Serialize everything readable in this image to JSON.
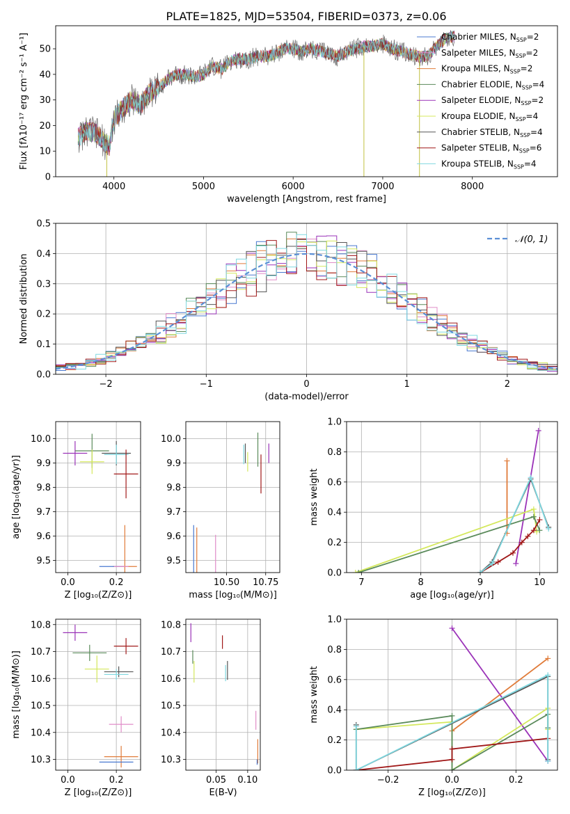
{
  "figure": {
    "title": "PLATE=1825, MJD=53504, FIBERID=0373, z=0.06"
  },
  "colors": {
    "chabrier_miles": "#4878d0",
    "salpeter_miles": "#e08cc8",
    "kroupa_miles": "#e07b39",
    "chabrier_elodie": "#5a8a5a",
    "salpeter_elodie": "#9a32b8",
    "kroupa_elodie": "#d4e85c",
    "chabrier_stelib": "#555555",
    "salpeter_stelib": "#a01818",
    "kroupa_stelib": "#7fd8e0",
    "gaussian": "#5b8fd6",
    "grid": "#b0b0b0"
  },
  "chart_data": [
    {
      "id": "spectrum",
      "type": "line",
      "title": "PLATE=1825, MJD=53504, FIBERID=0373, z=0.06",
      "xlabel": "wavelength [Angstrom, rest frame]",
      "ylabel": "Flux [fλ10⁻¹⁷ erg cm⁻² s⁻¹ A⁻¹]",
      "xlim": [
        3350,
        8950
      ],
      "ylim": [
        0,
        59
      ],
      "xticks": [
        4000,
        5000,
        6000,
        7000,
        8000
      ],
      "yticks": [
        0,
        10,
        20,
        30,
        40,
        50
      ],
      "grid": false,
      "legend_position": "right",
      "legend": [
        "Chabrier MILES, N_SSP=2",
        "Salpeter MILES, N_SSP=2",
        "Kroupa MILES, N_SSP=2",
        "Chabrier ELODIE, N_SSP=4",
        "Salpeter ELODIE, N_SSP=2",
        "Kroupa ELODIE, N_SSP=4",
        "Chabrier STELIB, N_SSP=4",
        "Salpeter STELIB, N_SSP=6",
        "Kroupa STELIB, N_SSP=4"
      ],
      "continuum": {
        "x": [
          3600,
          3700,
          3800,
          3900,
          3950,
          4000,
          4100,
          4200,
          4300,
          4400,
          4500,
          4600,
          4700,
          4800,
          4900,
          5000,
          5100,
          5200,
          5300,
          5400,
          5500,
          5600,
          5700,
          5800,
          5900,
          6000,
          6100,
          6200,
          6300,
          6400,
          6500,
          6600,
          6700,
          6800,
          6900,
          7000,
          7100,
          7200,
          7300,
          7400,
          7500,
          7600,
          7700,
          7800
        ],
        "y": [
          15,
          18,
          17,
          13,
          12,
          22,
          27,
          30,
          28,
          33,
          35,
          38,
          40,
          40,
          39,
          40,
          43,
          42,
          45,
          46,
          46,
          47,
          47,
          48,
          50,
          50,
          49,
          50,
          49,
          48,
          47,
          49,
          50,
          51,
          51,
          52,
          50,
          49,
          48,
          47,
          47,
          51,
          54,
          55
        ]
      },
      "spikes": [
        {
          "x": 3920,
          "y0": 0,
          "y1": 10
        },
        {
          "x": 6790,
          "y0": 0,
          "y1": 51
        },
        {
          "x": 7410,
          "y0": 0,
          "y1": 47
        }
      ]
    },
    {
      "id": "residuals",
      "type": "line",
      "xlabel": "(data-model)/error",
      "ylabel": "Normed distribution",
      "xlim": [
        -2.5,
        2.5
      ],
      "ylim": [
        0,
        0.5
      ],
      "xticks": [
        -2,
        -1,
        0,
        1,
        2
      ],
      "yticks": [
        0.0,
        0.1,
        0.2,
        0.3,
        0.4,
        0.5
      ],
      "grid": true,
      "legend": [
        "𝒩(0, 1)"
      ],
      "legend_position": "top-right",
      "bin_width": 0.1,
      "bin_start": -2.5,
      "hist_seeds": [
        3,
        7,
        11,
        13,
        17,
        19,
        23,
        29,
        31
      ]
    },
    {
      "id": "age-vs-Z",
      "type": "scatter",
      "xlabel": "Z [log₁₀(Z/Z⊙)]",
      "ylabel": "age  [log₁₀(age/yr)]",
      "xlim": [
        -0.05,
        0.3
      ],
      "ylim": [
        9.45,
        10.07
      ],
      "xticks": [
        0.0,
        0.2
      ],
      "yticks": [
        9.5,
        9.6,
        9.7,
        9.8,
        9.9,
        10.0
      ],
      "grid": true,
      "points": [
        {
          "series": "Salpeter ELODIE",
          "x": 0.03,
          "y": 9.94,
          "xerr": 0.05,
          "yerr": 0.05
        },
        {
          "series": "Chabrier ELODIE",
          "x": 0.1,
          "y": 9.95,
          "xerr": 0.07,
          "yerr": 0.07
        },
        {
          "series": "Kroupa ELODIE",
          "x": 0.1,
          "y": 9.905,
          "xerr": 0.05,
          "yerr": 0.05
        },
        {
          "series": "Chabrier STELIB",
          "x": 0.2,
          "y": 9.94,
          "xerr": 0.06,
          "yerr": 0.05
        },
        {
          "series": "Kroupa STELIB",
          "x": 0.2,
          "y": 9.935,
          "xerr": 0.05,
          "yerr": 0.04
        },
        {
          "series": "Salpeter STELIB",
          "x": 0.24,
          "y": 9.855,
          "xerr": 0.05,
          "yerr": 0.1
        },
        {
          "series": "Kroupa MILES",
          "x": 0.235,
          "y": 9.475,
          "xerr": 0.05,
          "yerr": 0.17
        },
        {
          "series": "Chabrier MILES",
          "x": 0.18,
          "y": 9.475,
          "xerr": 0.05,
          "yerr": 0.0
        },
        {
          "series": "Salpeter MILES",
          "x": 0.22,
          "y": 9.475,
          "xerr": 0.03,
          "yerr": 0.0
        }
      ]
    },
    {
      "id": "age-vs-mass",
      "type": "scatter",
      "xlabel": "mass [log₁₀(M/M⊙)]",
      "ylabel": "",
      "xlim": [
        10.24,
        10.84
      ],
      "ylim": [
        9.45,
        10.07
      ],
      "xticks": [
        10.5,
        10.75
      ],
      "xticklabels": [
        "10.50",
        "10.75"
      ],
      "yticks": [
        9.5,
        9.6,
        9.7,
        9.8,
        9.9,
        10.0
      ],
      "grid": true,
      "points": [
        {
          "series": "Salpeter ELODIE",
          "x": 10.77,
          "y": 9.94,
          "xerr": 0.0,
          "yerr": 0.04
        },
        {
          "series": "Chabrier ELODIE",
          "x": 10.7,
          "y": 9.955,
          "xerr": 0.0,
          "yerr": 0.07
        },
        {
          "series": "Kroupa ELODIE",
          "x": 10.635,
          "y": 9.905,
          "xerr": 0.0,
          "yerr": 0.04
        },
        {
          "series": "Chabrier STELIB",
          "x": 10.62,
          "y": 9.94,
          "xerr": 0.0,
          "yerr": 0.04
        },
        {
          "series": "Kroupa STELIB",
          "x": 10.61,
          "y": 9.935,
          "xerr": 0.0,
          "yerr": 0.04
        },
        {
          "series": "Salpeter STELIB",
          "x": 10.72,
          "y": 9.855,
          "xerr": 0.0,
          "yerr": 0.08
        },
        {
          "series": "Kroupa MILES",
          "x": 10.31,
          "y": 9.475,
          "xerr": 0.0,
          "yerr": 0.16
        },
        {
          "series": "Chabrier MILES",
          "x": 10.29,
          "y": 9.475,
          "xerr": 0.0,
          "yerr": 0.17
        },
        {
          "series": "Salpeter MILES",
          "x": 10.43,
          "y": 9.475,
          "xerr": 0.0,
          "yerr": 0.13
        }
      ]
    },
    {
      "id": "weight-vs-age",
      "type": "line",
      "xlabel": "age  [log₁₀(age/yr)]",
      "ylabel": "mass weight",
      "xlim": [
        6.75,
        10.3
      ],
      "ylim": [
        0,
        1
      ],
      "xticks": [
        7,
        8,
        9,
        10
      ],
      "yticks": [
        0.0,
        0.2,
        0.4,
        0.6,
        0.8,
        1.0
      ],
      "grid": true,
      "series": [
        {
          "name": "Kroupa MILES",
          "x": [
            9.45,
            9.45
          ],
          "y": [
            0.26,
            0.74
          ]
        },
        {
          "name": "Salpeter ELODIE",
          "x": [
            9.6,
            9.98
          ],
          "y": [
            0.06,
            0.94
          ]
        },
        {
          "name": "Kroupa ELODIE",
          "x": [
            6.9,
            9.9,
            9.95
          ],
          "y": [
            0.0,
            0.42,
            0.27
          ]
        },
        {
          "name": "Chabrier ELODIE",
          "x": [
            6.95,
            9.9,
            10.0
          ],
          "y": [
            0.0,
            0.37,
            0.28
          ]
        },
        {
          "name": "Salpeter STELIB",
          "x": [
            9.0,
            9.3,
            9.55,
            9.7,
            9.8,
            9.9,
            10.0
          ],
          "y": [
            0.0,
            0.07,
            0.13,
            0.2,
            0.24,
            0.28,
            0.35
          ]
        },
        {
          "name": "Chabrier STELIB",
          "x": [
            9.0,
            9.2,
            9.85,
            10.15
          ],
          "y": [
            0.0,
            0.07,
            0.62,
            0.3
          ]
        },
        {
          "name": "Kroupa STELIB",
          "x": [
            9.0,
            9.2,
            9.85,
            10.15
          ],
          "y": [
            0.0,
            0.06,
            0.63,
            0.29
          ]
        }
      ]
    },
    {
      "id": "mass-vs-Z",
      "type": "scatter",
      "xlabel": "Z [log₁₀(Z/Z⊙)]",
      "ylabel": "mass [log₁₀(M/M⊙)]",
      "xlim": [
        -0.05,
        0.3
      ],
      "ylim": [
        10.26,
        10.82
      ],
      "xticks": [
        0.0,
        0.2
      ],
      "yticks": [
        10.3,
        10.4,
        10.5,
        10.6,
        10.7,
        10.8
      ],
      "grid": true,
      "points": [
        {
          "series": "Salpeter ELODIE",
          "x": 0.03,
          "y": 10.77,
          "xerr": 0.05,
          "yerr": 0.03
        },
        {
          "series": "Chabrier ELODIE",
          "x": 0.09,
          "y": 10.695,
          "xerr": 0.07,
          "yerr": 0.03
        },
        {
          "series": "Salpeter STELIB",
          "x": 0.24,
          "y": 10.72,
          "xerr": 0.05,
          "yerr": 0.03
        },
        {
          "series": "Kroupa ELODIE",
          "x": 0.12,
          "y": 10.635,
          "xerr": 0.05,
          "yerr": 0.05
        },
        {
          "series": "Chabrier STELIB",
          "x": 0.21,
          "y": 10.625,
          "xerr": 0.06,
          "yerr": 0.02
        },
        {
          "series": "Kroupa STELIB",
          "x": 0.2,
          "y": 10.615,
          "xerr": 0.05,
          "yerr": 0.02
        },
        {
          "series": "Salpeter MILES",
          "x": 0.22,
          "y": 10.43,
          "xerr": 0.05,
          "yerr": 0.03
        },
        {
          "series": "Kroupa MILES",
          "x": 0.22,
          "y": 10.31,
          "xerr": 0.07,
          "yerr": 0.04
        },
        {
          "series": "Chabrier MILES",
          "x": 0.2,
          "y": 10.29,
          "xerr": 0.07,
          "yerr": 0.0
        }
      ]
    },
    {
      "id": "mass-vs-EBV",
      "type": "scatter",
      "xlabel": "E(B-V)",
      "ylabel": "",
      "xlim": [
        0.002,
        0.12
      ],
      "ylim": [
        10.26,
        10.82
      ],
      "xticks": [
        0.05,
        0.1
      ],
      "xticklabels": [
        "0.05",
        "0.10"
      ],
      "yticks": [
        10.3,
        10.4,
        10.5,
        10.6,
        10.7,
        10.8
      ],
      "grid": true,
      "points": [
        {
          "series": "Salpeter ELODIE",
          "x": 0.01,
          "y": 10.77,
          "xerr": 0,
          "yerr": 0.035
        },
        {
          "series": "Chabrier ELODIE",
          "x": 0.013,
          "y": 10.68,
          "xerr": 0,
          "yerr": 0.025
        },
        {
          "series": "Kroupa ELODIE",
          "x": 0.015,
          "y": 10.625,
          "xerr": 0,
          "yerr": 0.04
        },
        {
          "series": "Salpeter STELIB",
          "x": 0.06,
          "y": 10.735,
          "xerr": 0,
          "yerr": 0.025
        },
        {
          "series": "Chabrier STELIB",
          "x": 0.068,
          "y": 10.63,
          "xerr": 0,
          "yerr": 0.035
        },
        {
          "series": "Kroupa STELIB",
          "x": 0.065,
          "y": 10.62,
          "xerr": 0,
          "yerr": 0.03
        },
        {
          "series": "Salpeter MILES",
          "x": 0.113,
          "y": 10.445,
          "xerr": 0,
          "yerr": 0.035
        },
        {
          "series": "Kroupa MILES",
          "x": 0.116,
          "y": 10.33,
          "xerr": 0,
          "yerr": 0.045
        },
        {
          "series": "Chabrier MILES",
          "x": 0.115,
          "y": 10.29,
          "xerr": 0,
          "yerr": 0.01
        }
      ]
    },
    {
      "id": "weight-vs-Z",
      "type": "line",
      "xlabel": "Z [log₁₀(Z/Z⊙)]",
      "ylabel": "mass weight",
      "xlim": [
        -0.33,
        0.33
      ],
      "ylim": [
        0,
        1
      ],
      "xticks": [
        -0.2,
        0.0,
        0.2
      ],
      "xticklabels": [
        "−0.2",
        "0.0",
        "0.2"
      ],
      "yticks": [
        0.0,
        0.2,
        0.4,
        0.6,
        0.8,
        1.0
      ],
      "grid": true,
      "series": [
        {
          "name": "Salpeter ELODIE",
          "x": [
            0.0,
            0.3
          ],
          "y": [
            0.94,
            0.06
          ]
        },
        {
          "name": "Kroupa MILES",
          "x": [
            0.0,
            0.3
          ],
          "y": [
            0.26,
            0.74
          ]
        },
        {
          "name": "Kroupa ELODIE",
          "x": [
            -0.3,
            0.0,
            0.0,
            0.3,
            0.3
          ],
          "y": [
            0.27,
            0.32,
            0.0,
            0.41,
            0.27
          ]
        },
        {
          "name": "Chabrier ELODIE",
          "x": [
            -0.3,
            0.0,
            0.0,
            0.3,
            0.3
          ],
          "y": [
            0.27,
            0.36,
            0.0,
            0.37,
            0.28
          ]
        },
        {
          "name": "Salpeter STELIB",
          "x": [
            -0.3,
            0.0,
            0.0,
            0.3
          ],
          "y": [
            0.0,
            0.07,
            0.14,
            0.21
          ]
        },
        {
          "name": "Chabrier STELIB",
          "x": [
            -0.3,
            -0.3,
            0.3,
            0.3
          ],
          "y": [
            0.3,
            0.0,
            0.62,
            0.07
          ]
        },
        {
          "name": "Kroupa STELIB",
          "x": [
            -0.3,
            -0.3,
            0.3,
            0.3
          ],
          "y": [
            0.29,
            0.0,
            0.63,
            0.06
          ]
        }
      ]
    }
  ]
}
